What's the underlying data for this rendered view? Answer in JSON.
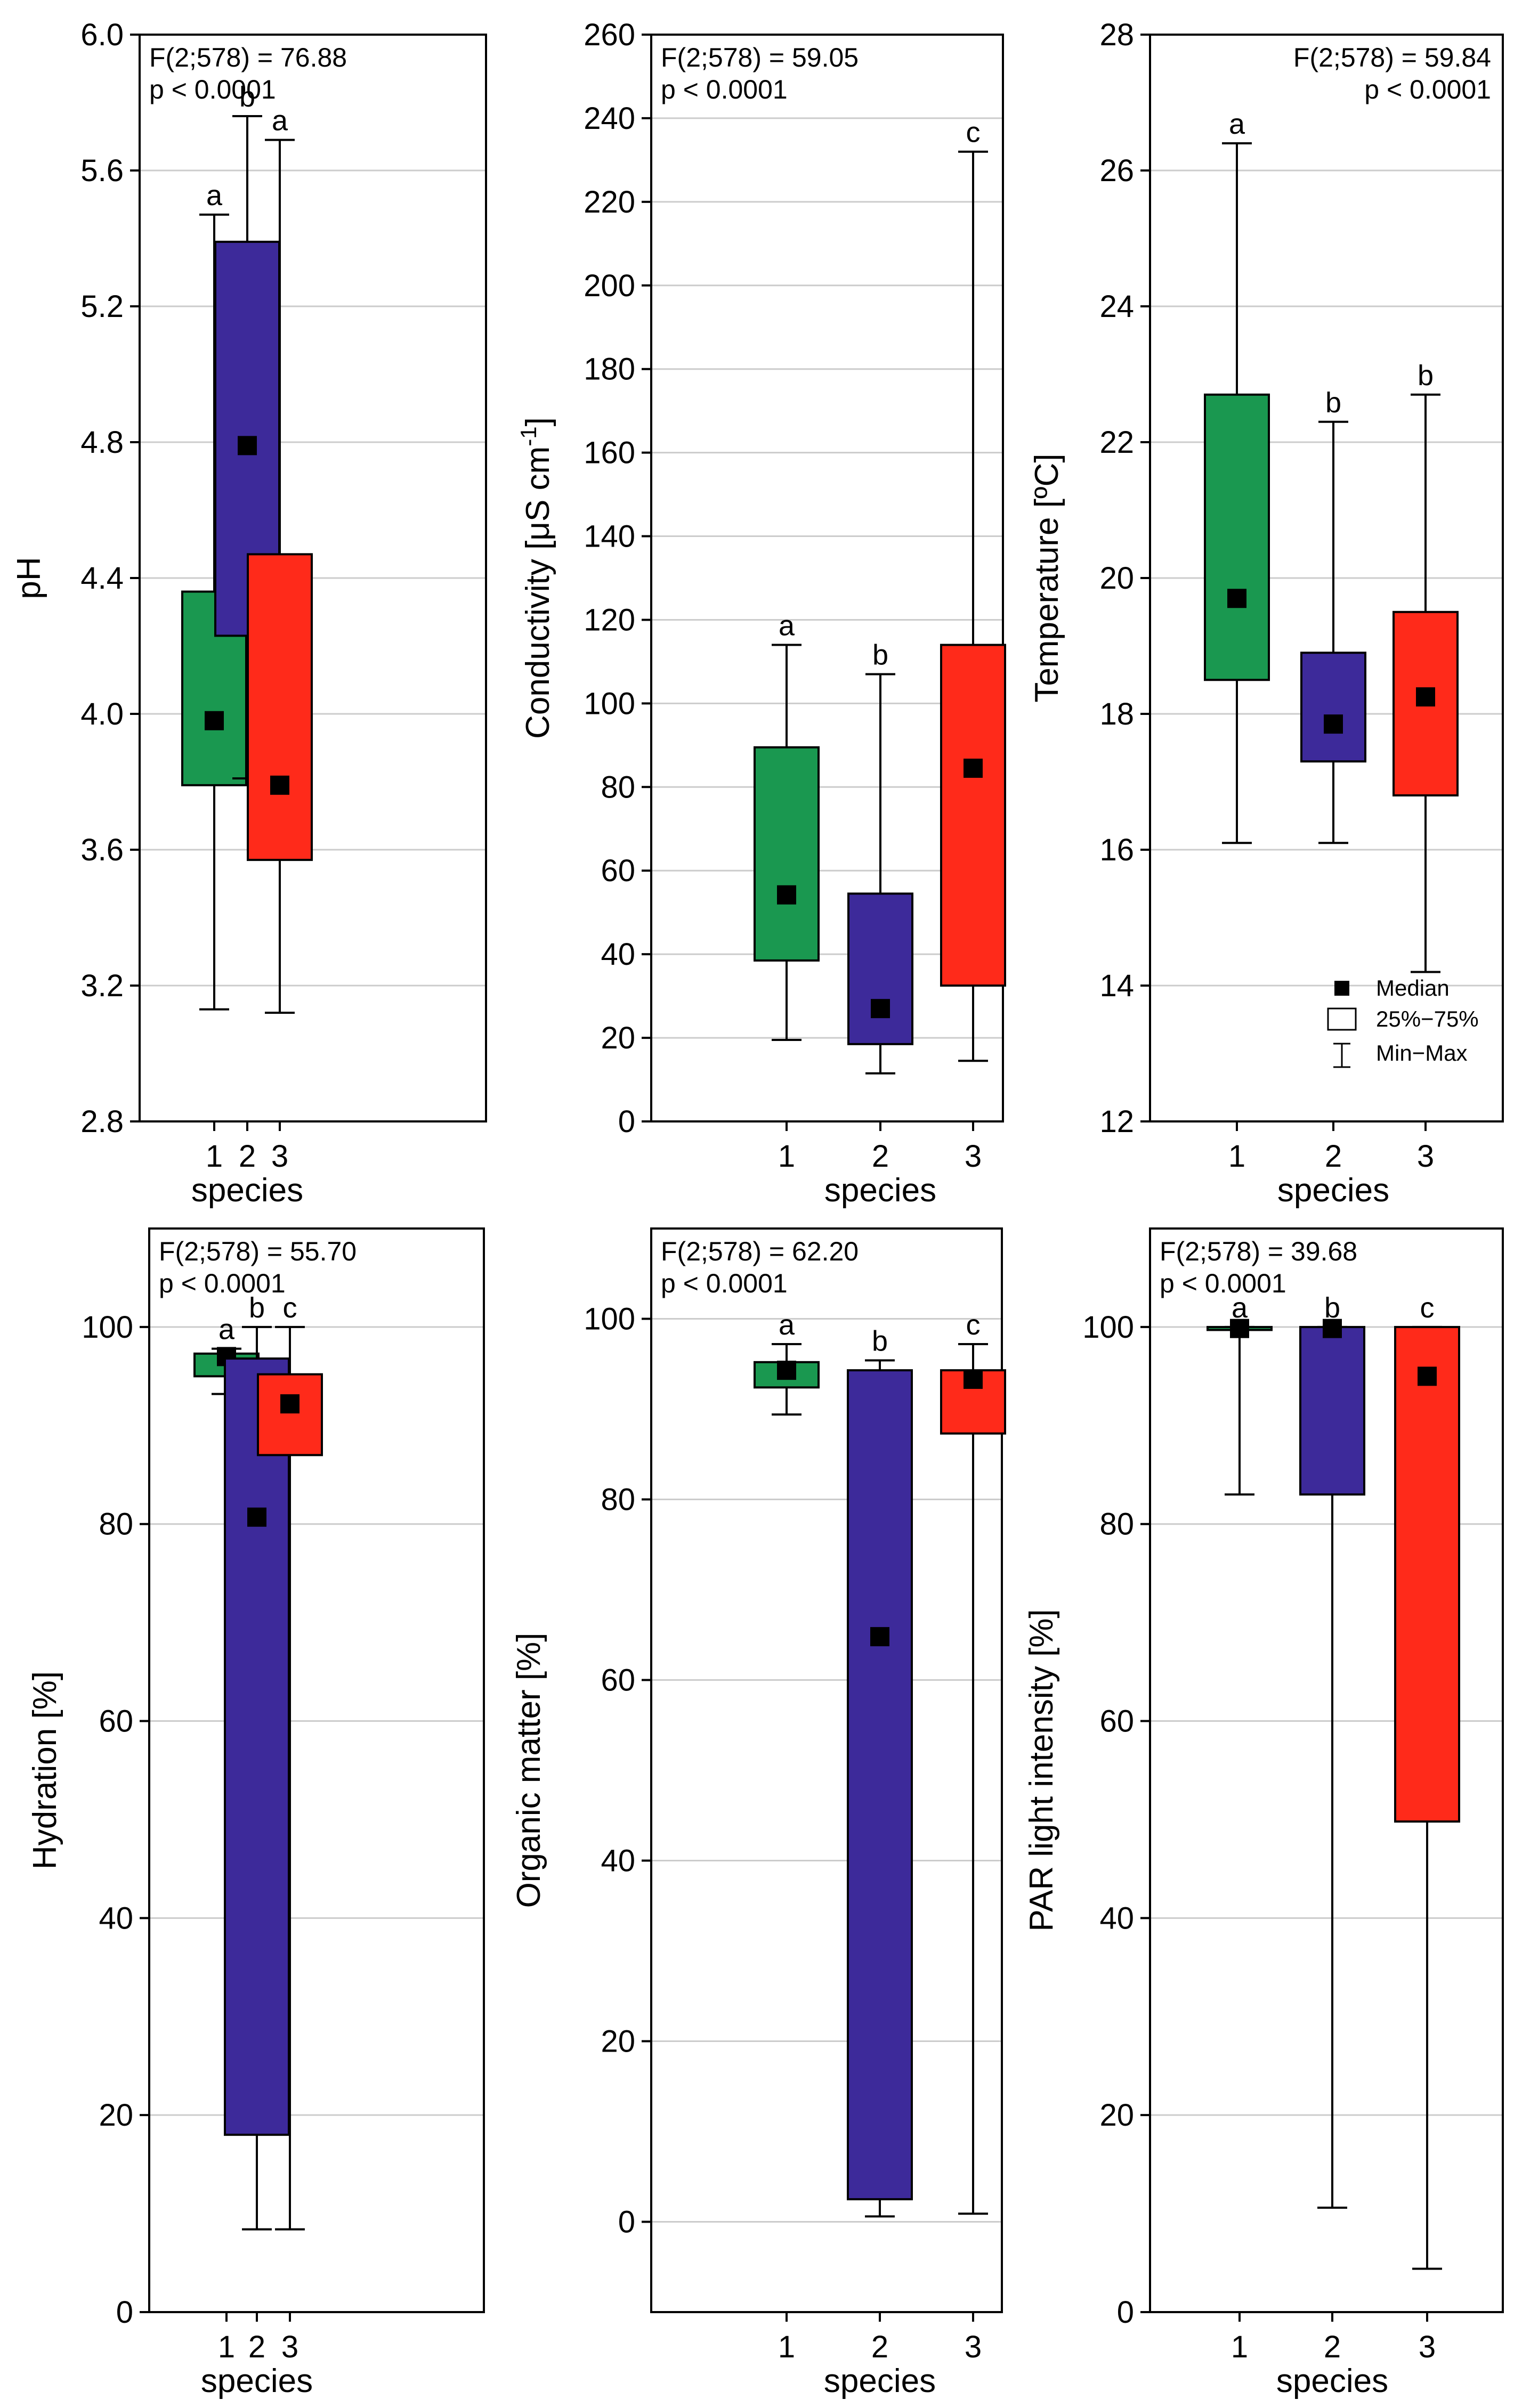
{
  "figure": {
    "legend": {
      "median_label": "Median",
      "box_label": "25%−75%",
      "whisker_label": "Min−Max"
    }
  },
  "colors": {
    "species_1": "#1a9850",
    "species_2": "#3d2a9a",
    "species_3": "#ff2a1a",
    "gridline": "#cccccc",
    "median_marker": "#000000"
  },
  "chart_data": [
    {
      "type": "box",
      "ylabel": "pH",
      "xlabel": "species",
      "stats": [
        "F(2;578) = 76.88",
        "p < 0.0001"
      ],
      "stats_align": "left",
      "ylim": [
        2.8,
        6.0
      ],
      "yticks": [
        2.8,
        3.2,
        3.6,
        4.0,
        4.4,
        4.8,
        5.2,
        5.6,
        6.0
      ],
      "ytick_labels": [
        "2.8",
        "3.2",
        "3.6",
        "4.0",
        "4.4",
        "4.8",
        "5.2",
        "5.6",
        "6.0"
      ],
      "categories": [
        "1",
        "2",
        "3"
      ],
      "series": [
        {
          "min": 3.13,
          "q1": 3.79,
          "median": 3.98,
          "q3": 4.36,
          "max": 5.47,
          "letter": "a"
        },
        {
          "min": 3.81,
          "q1": 4.23,
          "median": 4.79,
          "q3": 5.39,
          "max": 5.76,
          "letter": "b"
        },
        {
          "min": 3.12,
          "q1": 3.57,
          "median": 3.79,
          "q3": 4.47,
          "max": 5.69,
          "letter": "a"
        }
      ]
    },
    {
      "type": "box",
      "ylabel": "Conductivity [μS cm",
      "ylabel_sup": "-1",
      "ylabel_end": "]",
      "xlabel": "species",
      "stats": [
        "F(2;578) = 59.05",
        "p < 0.0001"
      ],
      "stats_align": "left",
      "ylim": [
        0,
        260
      ],
      "yticks": [
        0,
        20,
        40,
        60,
        80,
        100,
        120,
        140,
        160,
        180,
        200,
        220,
        240,
        260
      ],
      "ytick_labels": [
        "0",
        "20",
        "40",
        "60",
        "80",
        "100",
        "120",
        "140",
        "160",
        "180",
        "200",
        "220",
        "240",
        "260"
      ],
      "categories": [
        "1",
        "2",
        "3"
      ],
      "series": [
        {
          "min": 19.5,
          "q1": 38.5,
          "median": 54.2,
          "q3": 89.5,
          "max": 114,
          "letter": "a"
        },
        {
          "min": 11.5,
          "q1": 18.5,
          "median": 27.0,
          "q3": 54.5,
          "max": 107,
          "letter": "b"
        },
        {
          "min": 14.5,
          "q1": 32.5,
          "median": 84.5,
          "q3": 114,
          "max": 232,
          "letter": "c"
        }
      ]
    },
    {
      "type": "box",
      "ylabel": "Temperature [ºC]",
      "xlabel": "species",
      "stats": [
        "F(2;578) = 59.84",
        "p < 0.0001"
      ],
      "stats_align": "right",
      "ylim": [
        12,
        28
      ],
      "yticks": [
        12,
        14,
        16,
        18,
        20,
        22,
        24,
        26,
        28
      ],
      "ytick_labels": [
        "12",
        "14",
        "16",
        "18",
        "20",
        "22",
        "24",
        "26",
        "28"
      ],
      "categories": [
        "1",
        "2",
        "3"
      ],
      "series": [
        {
          "min": 16.1,
          "q1": 18.5,
          "median": 19.7,
          "q3": 22.7,
          "max": 26.4,
          "letter": "a"
        },
        {
          "min": 16.1,
          "q1": 17.3,
          "median": 17.85,
          "q3": 18.9,
          "max": 22.3,
          "letter": "b"
        },
        {
          "min": 14.2,
          "q1": 16.8,
          "median": 18.25,
          "q3": 19.5,
          "max": 22.7,
          "letter": "b"
        }
      ],
      "show_legend": true
    },
    {
      "type": "box",
      "ylabel": "Hydration [%]",
      "xlabel": "species",
      "stats": [
        "F(2;578) = 55.70",
        "p < 0.0001"
      ],
      "stats_align": "left",
      "ylim": [
        0,
        110
      ],
      "yticks": [
        0,
        20,
        40,
        60,
        80,
        100
      ],
      "ytick_labels": [
        "0",
        "20",
        "40",
        "60",
        "80",
        "100"
      ],
      "categories": [
        "1",
        "2",
        "3"
      ],
      "series": [
        {
          "min": 93.2,
          "q1": 95.0,
          "median": 97.0,
          "q3": 97.3,
          "max": 97.8,
          "letter": "a"
        },
        {
          "min": 8.4,
          "q1": 18.0,
          "median": 80.7,
          "q3": 96.8,
          "max": 100,
          "letter": "b"
        },
        {
          "min": 8.4,
          "q1": 87.0,
          "median": 92.2,
          "q3": 95.2,
          "max": 100,
          "letter": "c"
        }
      ]
    },
    {
      "type": "box",
      "ylabel": "Organic matter [%]",
      "xlabel": "species",
      "stats": [
        "F(2;578) = 62.20",
        "p < 0.0001"
      ],
      "stats_align": "left",
      "ylim": [
        -10,
        110
      ],
      "yticks": [
        0,
        20,
        40,
        60,
        80,
        100
      ],
      "ytick_labels": [
        "0",
        "20",
        "40",
        "60",
        "80",
        "100"
      ],
      "categories": [
        "1",
        "2",
        "3"
      ],
      "series": [
        {
          "min": 89.4,
          "q1": 92.4,
          "median": 94.3,
          "q3": 95.2,
          "max": 97.2,
          "letter": "a"
        },
        {
          "min": 0.6,
          "q1": 2.5,
          "median": 64.8,
          "q3": 94.3,
          "max": 95.4,
          "letter": "b"
        },
        {
          "min": 0.9,
          "q1": 87.3,
          "median": 93.3,
          "q3": 94.3,
          "max": 97.2,
          "letter": "c"
        }
      ]
    },
    {
      "type": "box",
      "ylabel": "PAR light intensity [%]",
      "xlabel": "species",
      "stats": [
        "F(2;578) = 39.68",
        "p < 0.0001"
      ],
      "stats_align": "left",
      "ylim": [
        0,
        110
      ],
      "yticks": [
        0,
        20,
        40,
        60,
        80,
        100
      ],
      "ytick_labels": [
        "0",
        "20",
        "40",
        "60",
        "80",
        "100"
      ],
      "categories": [
        "1",
        "2",
        "3"
      ],
      "series": [
        {
          "min": 83.0,
          "q1": 99.7,
          "median": 99.85,
          "q3": 100,
          "max": 100,
          "letter": "a"
        },
        {
          "min": 10.6,
          "q1": 83.0,
          "median": 99.85,
          "q3": 100,
          "max": 100,
          "letter": "b"
        },
        {
          "min": 4.4,
          "q1": 49.8,
          "median": 95.0,
          "q3": 100,
          "max": 100,
          "letter": "c"
        }
      ]
    }
  ]
}
